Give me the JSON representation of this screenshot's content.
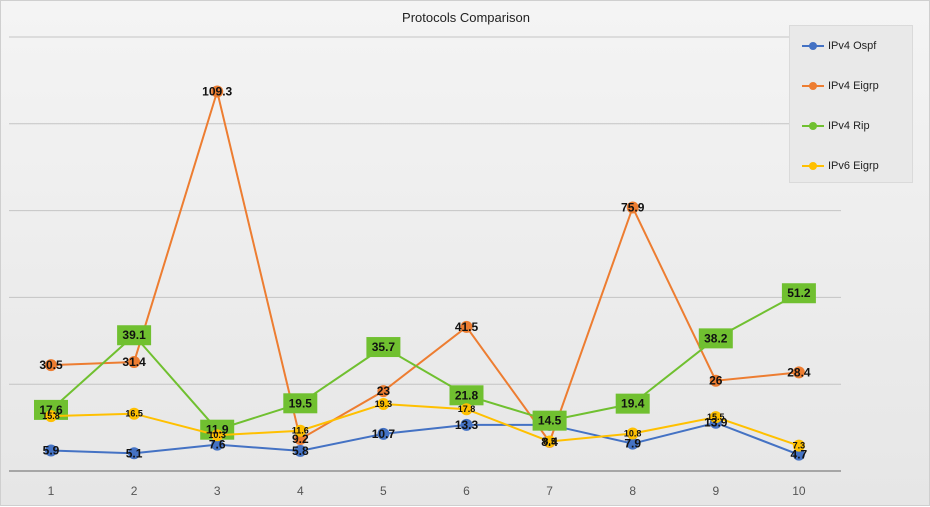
{
  "chart_data": {
    "type": "line",
    "title": "Protocols Comparison",
    "xlabel": "",
    "ylabel": "",
    "categories": [
      "1",
      "2",
      "3",
      "4",
      "5",
      "6",
      "7",
      "8",
      "9",
      "10"
    ],
    "ylim": [
      0,
      125
    ],
    "grid": true,
    "legend_position": "top-right",
    "series": [
      {
        "name": "IPv4 Ospf",
        "color": "#4472c4",
        "marker": "circle",
        "values": [
          5.9,
          5.1,
          7.6,
          5.8,
          10.7,
          13.3,
          13.3,
          7.9,
          13.9,
          4.7
        ]
      },
      {
        "name": "IPv4 Eigrp",
        "color": "#ed7d31",
        "marker": "circle",
        "values": [
          30.5,
          31.4,
          109.3,
          9.2,
          23,
          41.5,
          8.4,
          75.9,
          26,
          28.4
        ]
      },
      {
        "name": "IPv4 Rip",
        "color": "#70c030",
        "marker": "square",
        "values": [
          17.6,
          39.1,
          11.9,
          19.5,
          35.7,
          21.8,
          14.5,
          19.4,
          38.2,
          51.2
        ]
      },
      {
        "name": "IPv6 Eigrp",
        "color": "#ffc000",
        "marker": "circle",
        "values": [
          15.8,
          16.5,
          10.3,
          11.6,
          19.3,
          17.8,
          8.5,
          10.8,
          15.5,
          7.3
        ]
      }
    ],
    "data_labels": {
      "IPv4 Ospf": [
        "5.9",
        "5.1",
        "7.6",
        "5.8",
        "10.7",
        "13.3",
        "",
        "7.9",
        "13.9",
        "4.7"
      ],
      "IPv4 Eigrp": [
        "30.5",
        "31.4",
        "109.3",
        "9.2",
        "23",
        "41.5",
        "8.4",
        "75.9",
        "26",
        "28.4"
      ],
      "IPv4 Rip": [
        "17.6",
        "39.1",
        "11.9",
        "19.5",
        "35.7",
        "21.8",
        "14.5",
        "19.4",
        "38.2",
        "51.2"
      ],
      "IPv6 Eigrp": [
        "15.8",
        "16.5",
        "10.3",
        "11.6",
        "19.3",
        "17.8",
        "8.5",
        "10.8",
        "15.5",
        "7.3"
      ]
    }
  }
}
